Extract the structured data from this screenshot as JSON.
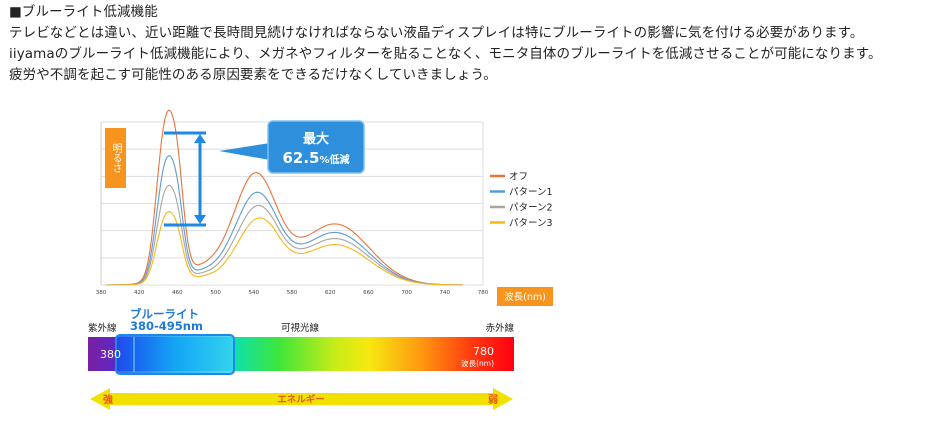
{
  "heading": "■ブルーライト低減機能",
  "paragraphs": [
    "テレビなどとは違い、近い距離で長時間見続けなければならない液晶ディスプレイは特にブルーライトの影響に気を付ける必要があります。",
    "iiyamaのブルーライト低減機能により、メガネやフィルターを貼ることなく、モニタ自体のブルーライトを低減させることが可能になります。",
    "疲労や不調を起こす可能性のある原因要素をできるだけなくしていきましょう。"
  ],
  "chart_data": {
    "type": "line",
    "ylabel": "明るさ",
    "xlabel": "波長(nm)",
    "x_ticks": [
      380,
      420,
      460,
      500,
      540,
      580,
      620,
      660,
      700,
      740,
      780
    ],
    "xlim": [
      380,
      780
    ],
    "callout": {
      "line1": "最大",
      "value": "62.5",
      "unit": "%低減"
    },
    "legend_position": "right",
    "series": [
      {
        "name": "オフ",
        "color": "#e8743b"
      },
      {
        "name": "パターン1",
        "color": "#5b9bd5"
      },
      {
        "name": "パターン2",
        "color": "#a5a5a5"
      },
      {
        "name": "パターン3",
        "color": "#f4b81c"
      }
    ]
  },
  "spectrum": {
    "uv_label": "紫外線",
    "visible_label": "可視光線",
    "ir_label": "赤外線",
    "blue_title": "ブルーライト",
    "blue_range": "380-495nm",
    "start_value": "380",
    "end_value": "780",
    "end_unit": "波長(nm)"
  },
  "energy": {
    "label": "エネルギー",
    "strong": "強",
    "weak": "弱"
  },
  "colors": {
    "accent_orange": "#f7941d",
    "callout_blue": "#2e8fdc",
    "arrow_blue": "#1e88e5",
    "energy_yellow": "#f1e000"
  }
}
